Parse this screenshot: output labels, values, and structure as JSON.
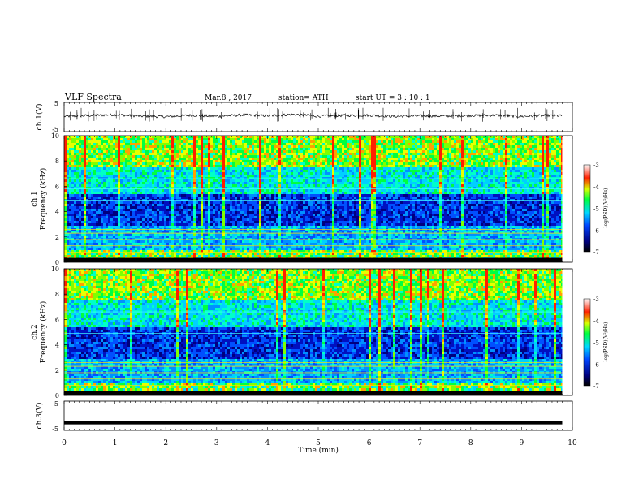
{
  "header": {
    "title": "VLF Spectra",
    "date": "Mar.8 , 2017",
    "station": "station= ATH",
    "start": "start UT = 3 : 10 : 1"
  },
  "colorbar_label": "log(PSD)(V²/Hz)",
  "chart_data": [
    {
      "type": "line",
      "ylabel": "ch.1(V)",
      "ylim": [
        -5,
        5
      ],
      "yticks": [
        "5",
        "-5"
      ],
      "xlim": [
        0,
        10
      ],
      "description_free": true,
      "x": [
        0,
        0.5,
        1,
        1.5,
        2,
        2.5,
        3,
        3.5,
        4,
        4.5,
        5,
        5.5,
        6,
        6.5,
        7,
        7.5,
        8,
        8.5,
        9,
        9.5,
        9.8
      ],
      "y": [
        0.2,
        0.5,
        0.8,
        0.3,
        0.1,
        0.6,
        0.2,
        0.7,
        0.4,
        0.9,
        0.3,
        0.5,
        0.6,
        0.2,
        0.4,
        0.3,
        0.5,
        0.6,
        0.2,
        0.5,
        0.4
      ]
    },
    {
      "type": "heatmap",
      "ylabel_channel": "ch.1",
      "ylabel": "Frequency (kHz)",
      "ylim": [
        0,
        10
      ],
      "yticks": [
        "0",
        "2",
        "4",
        "6",
        "8",
        "10"
      ],
      "xlim": [
        0,
        9.8
      ],
      "colorbar": {
        "range": [
          -7,
          -3
        ],
        "ticks": [
          "-3",
          "-4",
          "-5",
          "-6",
          "-7"
        ]
      }
    },
    {
      "type": "heatmap",
      "ylabel_channel": "ch.2",
      "ylabel": "Frequency (kHz)",
      "ylim": [
        0,
        10
      ],
      "yticks": [
        "0",
        "2",
        "4",
        "6",
        "8",
        "10"
      ],
      "xlim": [
        0,
        9.8
      ],
      "colorbar": {
        "range": [
          -7,
          -3
        ],
        "ticks": [
          "-3",
          "-4",
          "-5",
          "-6",
          "-7"
        ]
      }
    },
    {
      "type": "line",
      "ylabel": "ch.3(V)",
      "ylim": [
        -5,
        5
      ],
      "yticks": [
        "5",
        "-5"
      ],
      "xlim": [
        0,
        10
      ],
      "x": [
        0,
        9.8
      ],
      "y": [
        -2.4,
        -2.4
      ]
    }
  ],
  "xaxis": {
    "label": "Time (min)",
    "range": [
      0,
      10
    ],
    "ticks": [
      "0",
      "1",
      "2",
      "3",
      "4",
      "5",
      "6",
      "7",
      "8",
      "9",
      "10"
    ]
  }
}
